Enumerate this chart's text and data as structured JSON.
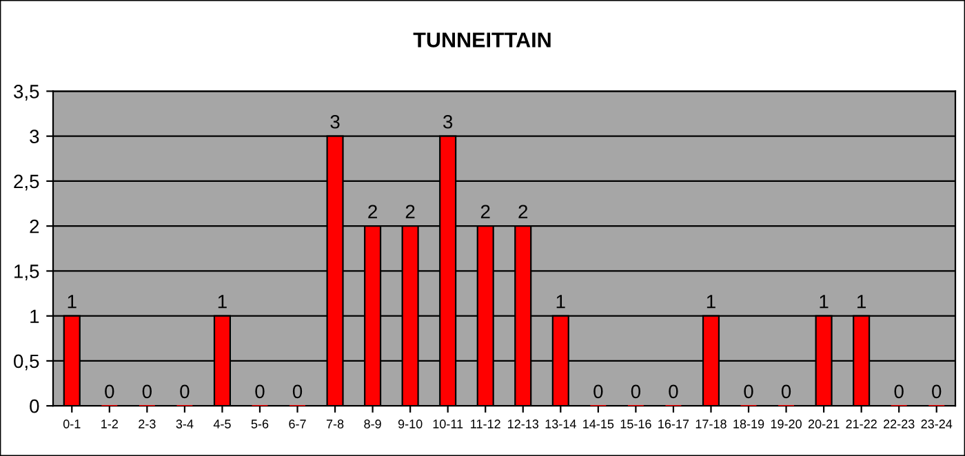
{
  "chart_data": {
    "type": "bar",
    "title": "TUNNEITTAIN",
    "categories": [
      "0-1",
      "1-2",
      "2-3",
      "3-4",
      "4-5",
      "5-6",
      "6-7",
      "7-8",
      "8-9",
      "9-10",
      "10-11",
      "11-12",
      "12-13",
      "13-14",
      "14-15",
      "15-16",
      "16-17",
      "17-18",
      "18-19",
      "19-20",
      "20-21",
      "21-22",
      "22-23",
      "23-24"
    ],
    "values": [
      1,
      0,
      0,
      0,
      1,
      0,
      0,
      3,
      2,
      2,
      3,
      2,
      2,
      1,
      0,
      0,
      0,
      1,
      0,
      0,
      1,
      1,
      0,
      0
    ],
    "color": "#ff0000",
    "ylim": [
      0,
      3.5
    ],
    "yticks": [
      0,
      {
        "value": 0.5,
        "label": "0,5"
      },
      1,
      {
        "value": 1.5,
        "label": "1,5"
      },
      2,
      {
        "value": 2.5,
        "label": "2,5"
      },
      3,
      {
        "value": 3.5,
        "label": "3,5"
      }
    ],
    "grid": "y",
    "data_labels": true
  }
}
